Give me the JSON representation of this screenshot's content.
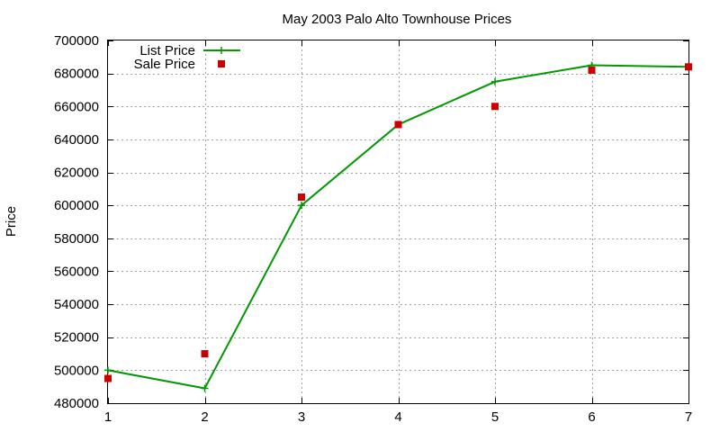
{
  "chart_data": {
    "type": "line",
    "title": "May 2003 Palo Alto Townhouse Prices",
    "xlabel": "",
    "ylabel": "Price",
    "xlim": [
      1,
      7
    ],
    "ylim": [
      480000,
      700000
    ],
    "x_ticks": [
      "1",
      "2",
      "3",
      "4",
      "5",
      "6",
      "7"
    ],
    "y_ticks": [
      "480000",
      "500000",
      "520000",
      "540000",
      "560000",
      "580000",
      "600000",
      "620000",
      "640000",
      "660000",
      "680000",
      "700000"
    ],
    "grid": true,
    "legend_position": "top-left",
    "series": [
      {
        "name": "List Price",
        "style": "line-with-plus-markers",
        "color": "#009900",
        "x": [
          1,
          2,
          3,
          4,
          5,
          6,
          7
        ],
        "values": [
          500000,
          489000,
          600000,
          649000,
          675000,
          685000,
          684000
        ]
      },
      {
        "name": "Sale Price",
        "style": "square-markers",
        "color": "#cc0000",
        "x": [
          1,
          2,
          3,
          4,
          5,
          6,
          7
        ],
        "values": [
          495000,
          510000,
          605000,
          649000,
          660000,
          682000,
          684000
        ]
      }
    ]
  }
}
